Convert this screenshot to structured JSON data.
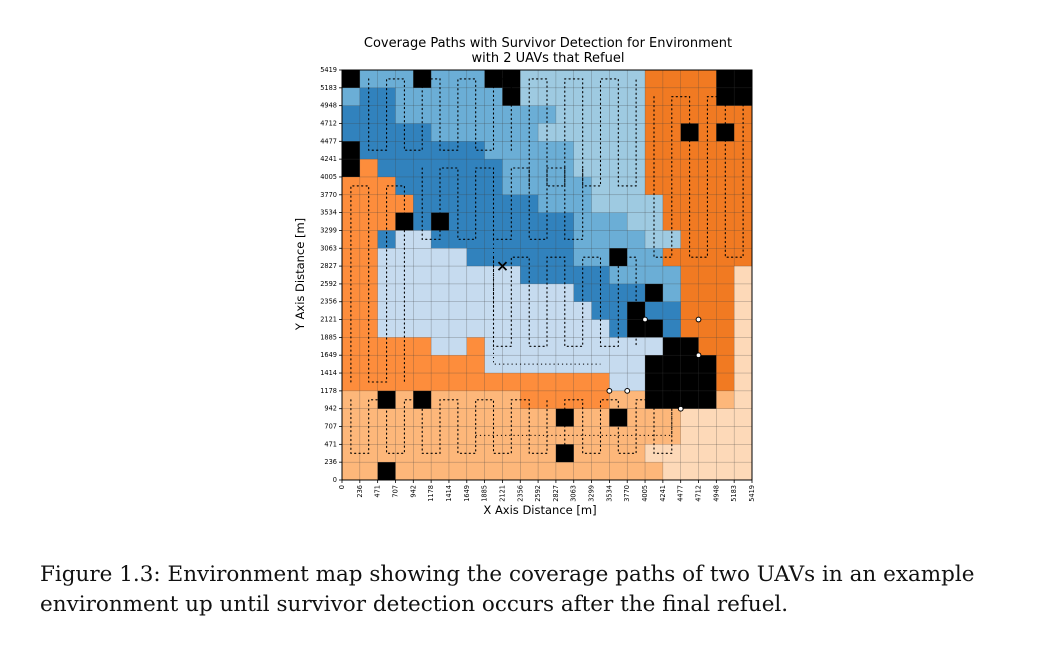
{
  "chart_data": {
    "type": "heatmap",
    "title": "Coverage Paths with Survivor Detection for Environment with 2 UAVs that Refuel",
    "title_lines": [
      "Coverage Paths with Survivor Detection for Environment",
      "with 2 UAVs that Refuel"
    ],
    "xlabel": "X Axis Distance [m]",
    "ylabel": "Y Axis Distance [m]",
    "xlim": [
      0,
      5419
    ],
    "ylim": [
      0,
      5419
    ],
    "grid": true,
    "x_ticks": [
      "0",
      "236",
      "471",
      "707",
      "942",
      "1178",
      "1414",
      "1649",
      "1885",
      "2121",
      "2356",
      "2592",
      "2827",
      "3063",
      "3299",
      "3534",
      "3770",
      "4005",
      "4241",
      "4477",
      "4712",
      "4948",
      "5183",
      "5419"
    ],
    "y_ticks": [
      "0",
      "236",
      "471",
      "707",
      "942",
      "1178",
      "1414",
      "1649",
      "1885",
      "2121",
      "2356",
      "2592",
      "2827",
      "3063",
      "3299",
      "3534",
      "3770",
      "4005",
      "4241",
      "4477",
      "4712",
      "4948",
      "5183",
      "5419"
    ],
    "regions": [
      {
        "uav": 1,
        "colormap": "blues",
        "description_levels": [
          "very light blue",
          "light blue",
          "medium blue",
          "dark blue"
        ]
      },
      {
        "uav": 2,
        "colormap": "oranges",
        "description_levels": [
          "very light orange",
          "light orange",
          "medium orange",
          "dark orange"
        ]
      }
    ],
    "colors": {
      "blue_1": "#c6dbef",
      "blue_2": "#9ecae1",
      "blue_3": "#6baed6",
      "blue_4": "#3182bd",
      "orange_1": "#fdd9b8",
      "orange_2": "#fdb77a",
      "orange_3": "#fd8d3c",
      "orange_4": "#f17a22",
      "obstacle": "#000000",
      "path": "#000000"
    },
    "markers": {
      "survivor_detection": {
        "symbol": "x",
        "x": 2121,
        "y": 2827
      },
      "refuel_points": [
        {
          "x": 3534,
          "y": 1178
        },
        {
          "x": 3770,
          "y": 1178
        },
        {
          "x": 4477,
          "y": 942
        },
        {
          "x": 4712,
          "y": 1649
        },
        {
          "x": 4712,
          "y": 2121
        },
        {
          "x": 4005,
          "y": 2121
        }
      ]
    }
  },
  "caption": "Figure 1.3: Environment map showing the coverage paths of two UAVs in an example environment up until survivor detection occurs after the final refuel."
}
